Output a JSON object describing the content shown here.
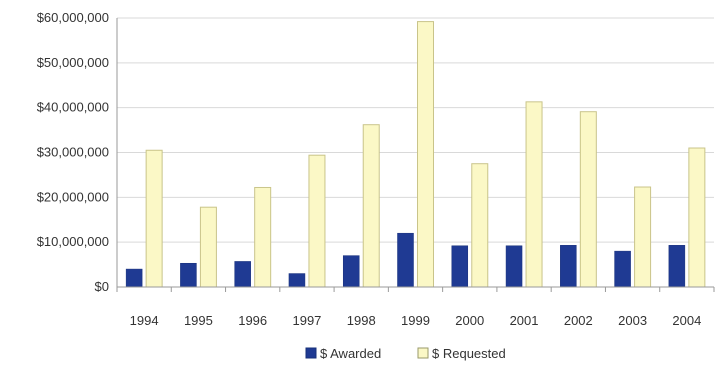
{
  "chart_data": {
    "type": "bar",
    "categories": [
      "1994",
      "1995",
      "1996",
      "1997",
      "1998",
      "1999",
      "2000",
      "2001",
      "2002",
      "2003",
      "2004"
    ],
    "series": [
      {
        "name": "$ Awarded",
        "color": "#1f3a93",
        "values": [
          4000000,
          5300000,
          5700000,
          3000000,
          7000000,
          12000000,
          9200000,
          9200000,
          9300000,
          8000000,
          9300000
        ]
      },
      {
        "name": "$ Requested",
        "color": "#fbf8c6",
        "values": [
          30500000,
          17800000,
          22200000,
          29400000,
          36200000,
          59200000,
          27500000,
          41300000,
          39100000,
          22300000,
          31000000
        ]
      }
    ],
    "ylim": [
      0,
      60000000
    ],
    "yticks": [
      0,
      10000000,
      20000000,
      30000000,
      40000000,
      50000000,
      60000000
    ],
    "ytick_labels": [
      "$0",
      "$10,000,000",
      "$20,000,000",
      "$30,000,000",
      "$40,000,000",
      "$50,000,000",
      "$60,000,000"
    ],
    "grid": true,
    "legend_position": "bottom-center",
    "title": "",
    "xlabel": "",
    "ylabel": ""
  }
}
